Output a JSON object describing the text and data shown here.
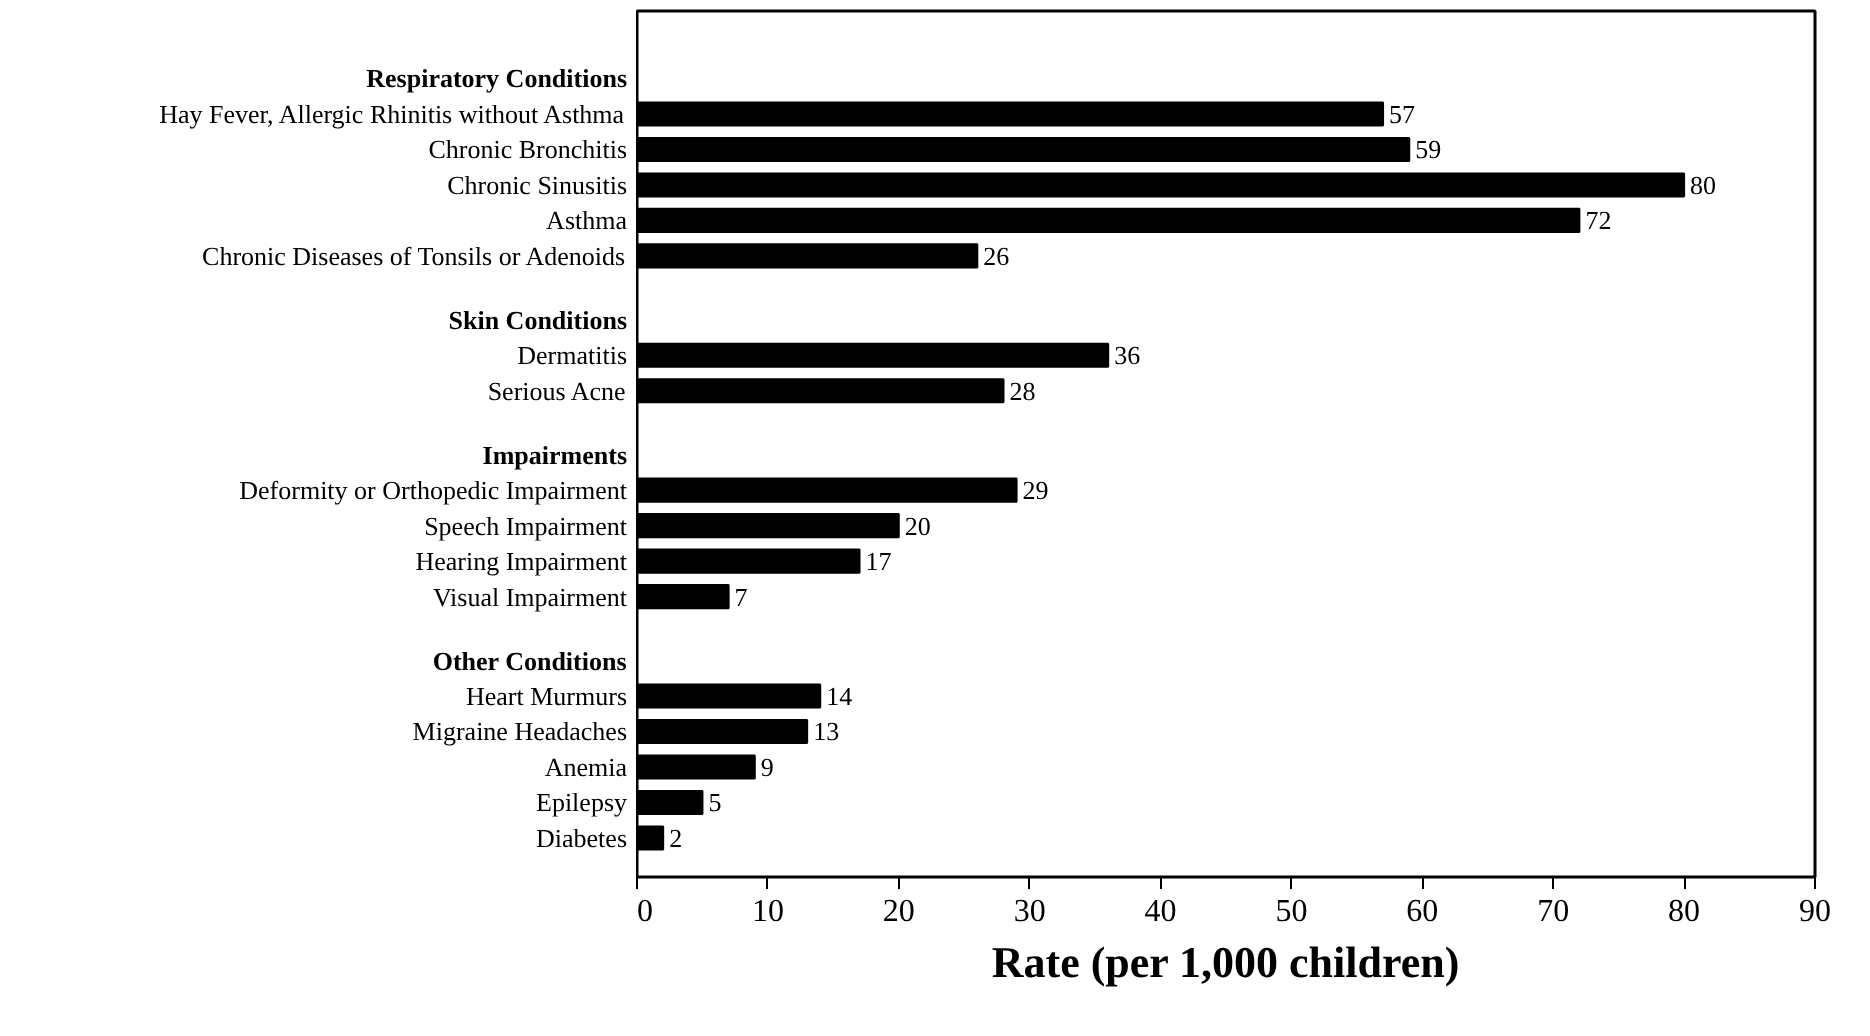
{
  "chart_data": {
    "type": "bar",
    "orientation": "horizontal",
    "xlabel": "Rate (per 1,000 children)",
    "categories": [
      "Respiratory Conditions",
      "Hay Fever, Allergic Rhinitis without Asthma",
      "Chronic Bronchitis",
      "Chronic Sinusitis",
      "Asthma",
      "Chronic Diseases of Tonsils or Adenoids",
      "Skin Conditions",
      "Dermatitis",
      "Serious Acne",
      "Impairments",
      "Deformity or Orthopedic Impairment",
      "Speech Impairment",
      "Hearing Impairment",
      "Visual Impairment",
      "Other Conditions",
      "Heart Murmurs",
      "Migraine Headaches",
      "Anemia",
      "Epilepsy",
      "Diabetes"
    ],
    "values": [
      null,
      57,
      59,
      80,
      72,
      26,
      null,
      36,
      28,
      null,
      29,
      20,
      17,
      7,
      null,
      14,
      13,
      9,
      5,
      2
    ],
    "color": "#000000",
    "data_labels": true,
    "grid": false,
    "xlim": [
      0,
      90
    ],
    "xticks": [
      0,
      10,
      20,
      30,
      40,
      50,
      60,
      70,
      80,
      90
    ]
  }
}
